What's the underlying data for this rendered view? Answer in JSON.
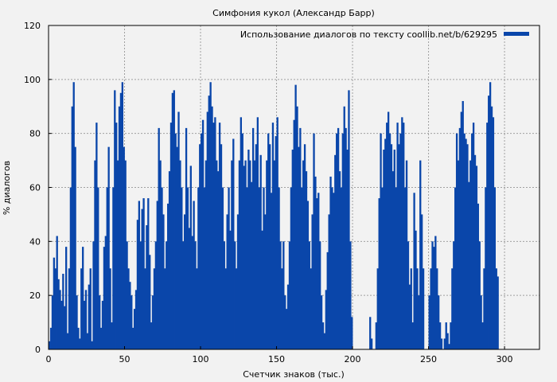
{
  "chart_data": {
    "type": "bar",
    "title": "Симфония кукол (Александр Барр)",
    "xlabel": "Счетчик знаков (тыс.)",
    "ylabel": "% диалогов",
    "xlim": [
      0,
      323
    ],
    "ylim": [
      0,
      120
    ],
    "xticks": [
      0,
      50,
      100,
      150,
      200,
      250,
      300
    ],
    "yticks": [
      0,
      20,
      40,
      60,
      80,
      100,
      120
    ],
    "grid": true,
    "legend": {
      "label": "Использование диалогов по тексту coollib.net/b/629295",
      "position": "top-right",
      "color": "#0a46aa"
    },
    "bar_color": "#0a46aa",
    "series": [
      {
        "name": "Использование диалогов по тексту coollib.net/b/629295",
        "x_start": 0.5,
        "x_step": 1,
        "values": [
          3,
          8,
          20,
          34,
          30,
          42,
          26,
          22,
          18,
          28,
          16,
          38,
          6,
          30,
          60,
          90,
          99,
          75,
          20,
          8,
          4,
          30,
          38,
          18,
          22,
          6,
          24,
          30,
          3,
          40,
          70,
          84,
          60,
          20,
          8,
          18,
          38,
          42,
          60,
          75,
          30,
          10,
          60,
          96,
          84,
          70,
          90,
          95,
          99,
          75,
          70,
          40,
          30,
          25,
          20,
          8,
          15,
          22,
          48,
          55,
          40,
          52,
          56,
          30,
          46,
          56,
          35,
          10,
          20,
          30,
          40,
          55,
          82,
          70,
          60,
          50,
          30,
          40,
          54,
          66,
          84,
          95,
          96,
          80,
          75,
          88,
          70,
          60,
          40,
          50,
          82,
          60,
          45,
          68,
          42,
          55,
          40,
          30,
          60,
          76,
          80,
          85,
          60,
          70,
          88,
          94,
          99,
          90,
          84,
          86,
          70,
          66,
          84,
          76,
          60,
          40,
          30,
          50,
          60,
          44,
          70,
          78,
          40,
          30,
          50,
          70,
          86,
          80,
          68,
          70,
          60,
          74,
          70,
          62,
          82,
          70,
          76,
          86,
          60,
          72,
          44,
          60,
          50,
          70,
          80,
          76,
          58,
          84,
          70,
          79,
          86,
          60,
          40,
          30,
          40,
          20,
          15,
          24,
          40,
          60,
          74,
          85,
          98,
          90,
          75,
          82,
          60,
          70,
          76,
          66,
          55,
          40,
          30,
          50,
          80,
          64,
          56,
          58,
          40,
          20,
          10,
          6,
          22,
          36,
          50,
          64,
          60,
          58,
          72,
          80,
          82,
          66,
          60,
          80,
          90,
          82,
          74,
          96,
          40,
          12,
          0,
          0,
          0,
          0,
          0,
          0,
          0,
          0,
          0,
          0,
          0,
          12,
          4,
          0,
          0,
          10,
          30,
          56,
          80,
          60,
          74,
          78,
          84,
          88,
          80,
          76,
          66,
          74,
          60,
          84,
          76,
          80,
          86,
          84,
          60,
          70,
          40,
          24,
          30,
          10,
          58,
          44,
          30,
          20,
          70,
          50,
          30,
          0,
          0,
          0,
          20,
          30,
          40,
          38,
          42,
          30,
          20,
          10,
          4,
          0,
          4,
          10,
          6,
          2,
          10,
          30,
          40,
          60,
          80,
          70,
          82,
          88,
          92,
          80,
          78,
          76,
          62,
          70,
          80,
          84,
          72,
          68,
          54,
          40,
          20,
          10,
          30,
          60,
          84,
          94,
          99,
          90,
          86,
          60,
          30,
          27
        ]
      }
    ]
  }
}
